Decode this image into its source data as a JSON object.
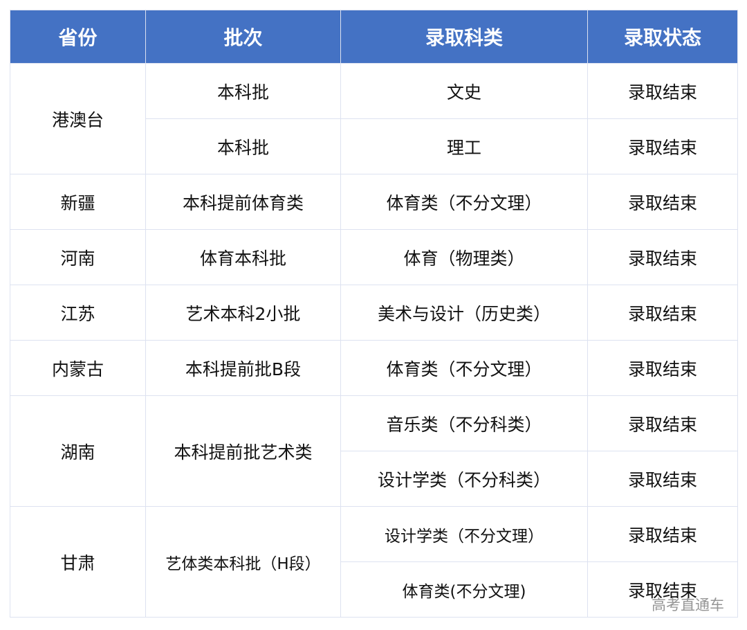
{
  "headers": [
    "省份",
    "批次",
    "录取科类",
    "录取状态"
  ],
  "rows": [
    {
      "province": "港澳台",
      "batch": "本科批",
      "category": "文史",
      "status": "录取结束"
    },
    {
      "category": "理工",
      "status": "录取结束",
      "batch": "本科批"
    },
    {
      "province": "新疆",
      "batch": "本科提前体育类",
      "category": "体育类（不分文理）",
      "status": "录取结束"
    },
    {
      "province": "河南",
      "batch": "体育本科批",
      "category": "体育（物理类）",
      "status": "录取结束"
    },
    {
      "province": "江苏",
      "batch": "艺术本科2小批",
      "category": "美术与设计（历史类）",
      "status": "录取结束"
    },
    {
      "province": "内蒙古",
      "batch": "本科提前批B段",
      "category": "体育类（不分文理）",
      "status": "录取结束"
    },
    {
      "province": "湖南",
      "batch": "本科提前批艺术类",
      "category": "音乐类（不分科类）",
      "status": "录取结束"
    },
    {
      "category": "设计学类（不分科类）",
      "status": "录取结束"
    },
    {
      "province": "甘肃",
      "batch": "艺体类本科批（H段）",
      "category": "设计学类（不分文理）",
      "status": "录取结束"
    },
    {
      "category": "体育类(不分文理)",
      "status": "录取结束"
    }
  ],
  "watermark": "高考直通车",
  "colors": {
    "header_bg": "#4472c4",
    "border": "#dde2f0"
  }
}
